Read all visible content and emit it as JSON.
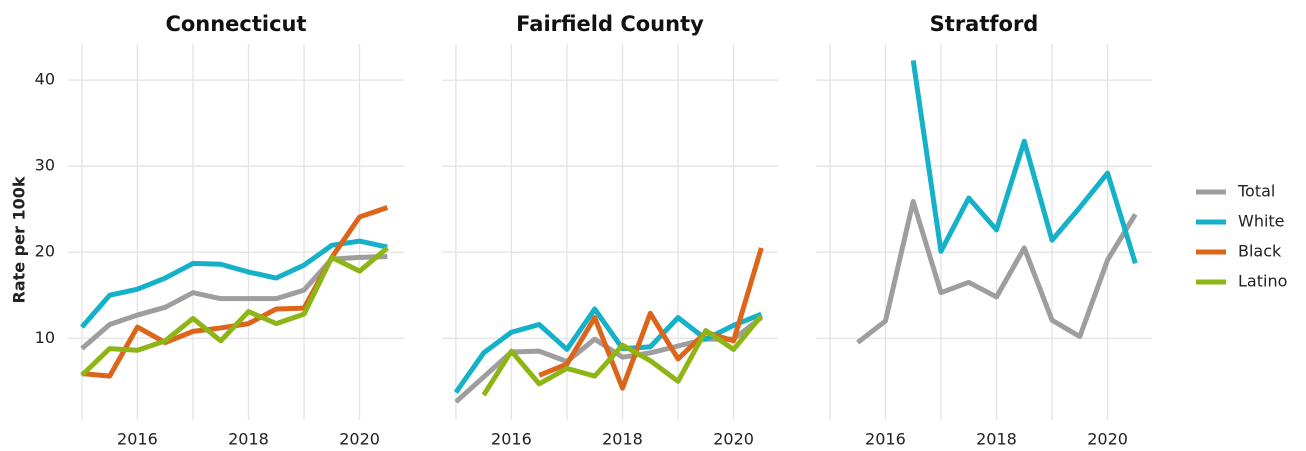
{
  "chart_data": [
    {
      "type": "line",
      "title": "Connecticut",
      "ylabel": "Rate per 100k",
      "x": [
        2015,
        2015.5,
        2016,
        2016.5,
        2017,
        2017.5,
        2018,
        2018.5,
        2019,
        2019.5,
        2020,
        2020.5
      ],
      "xlim": [
        2014.75,
        2020.8
      ],
      "xticks": [
        2016,
        2018,
        2020
      ],
      "x_minor_grid": [
        2015,
        2017,
        2019
      ],
      "ylim": [
        0.5,
        44.2
      ],
      "yticks": [
        10,
        20,
        30,
        40
      ],
      "grid": true,
      "series": [
        {
          "name": "Total",
          "color": "#9e9e9e",
          "values": [
            8.8,
            11.6,
            12.7,
            13.6,
            15.3,
            14.6,
            14.6,
            14.6,
            15.6,
            19.2,
            19.4,
            19.5
          ]
        },
        {
          "name": "White",
          "color": "#14b1c9",
          "values": [
            11.3,
            15.0,
            15.7,
            17.0,
            18.7,
            18.6,
            17.7,
            17.0,
            18.5,
            20.8,
            21.3,
            20.6
          ]
        },
        {
          "name": "Black",
          "color": "#dd651b",
          "values": [
            5.9,
            5.6,
            11.3,
            9.5,
            10.8,
            11.2,
            11.7,
            13.4,
            13.5,
            19.4,
            24.1,
            25.2
          ]
        },
        {
          "name": "Latino",
          "color": "#8db516",
          "values": [
            5.7,
            8.8,
            8.6,
            9.7,
            12.3,
            9.7,
            13.1,
            11.7,
            12.8,
            19.4,
            17.8,
            20.5
          ]
        }
      ]
    },
    {
      "type": "line",
      "title": "Fairfield County",
      "x": [
        2015,
        2015.5,
        2016,
        2016.5,
        2017,
        2017.5,
        2018,
        2018.5,
        2019,
        2019.5,
        2020,
        2020.5
      ],
      "xlim": [
        2014.75,
        2020.8
      ],
      "xticks": [
        2016,
        2018,
        2020
      ],
      "x_minor_grid": [
        2015,
        2017,
        2019
      ],
      "ylim": [
        0.5,
        44.2
      ],
      "yticks": [
        10,
        20,
        30,
        40
      ],
      "grid": true,
      "series": [
        {
          "name": "Total",
          "color": "#9e9e9e",
          "values": [
            2.6,
            5.5,
            8.4,
            8.5,
            7.3,
            9.9,
            7.8,
            8.3,
            9.1,
            9.9,
            9.9,
            12.4
          ]
        },
        {
          "name": "White",
          "color": "#14b1c9",
          "values": [
            3.7,
            8.3,
            10.7,
            11.6,
            8.7,
            13.4,
            8.8,
            9.0,
            12.4,
            9.9,
            11.5,
            12.8
          ]
        },
        {
          "name": "Black",
          "color": "#dd651b",
          "values": [
            null,
            null,
            null,
            5.7,
            7.0,
            12.4,
            4.2,
            12.9,
            7.6,
            10.7,
            9.7,
            20.5
          ]
        },
        {
          "name": "Latino",
          "color": "#8db516",
          "values": [
            null,
            3.4,
            8.5,
            4.7,
            6.5,
            5.6,
            9.2,
            7.4,
            5.0,
            10.9,
            8.7,
            12.6
          ]
        }
      ]
    },
    {
      "type": "line",
      "title": "Stratford",
      "x": [
        2015,
        2015.5,
        2016,
        2016.5,
        2017,
        2017.5,
        2018,
        2018.5,
        2019,
        2019.5,
        2020,
        2020.5
      ],
      "xlim": [
        2014.75,
        2020.8
      ],
      "xticks": [
        2016,
        2018,
        2020
      ],
      "x_minor_grid": [
        2015,
        2017,
        2019
      ],
      "ylim": [
        0.5,
        44.2
      ],
      "yticks": [
        10,
        20,
        30,
        40
      ],
      "grid": true,
      "series": [
        {
          "name": "Total",
          "color": "#9e9e9e",
          "values": [
            null,
            9.5,
            12.0,
            25.9,
            15.3,
            16.5,
            14.8,
            20.5,
            12.1,
            10.2,
            19.1,
            24.4
          ]
        },
        {
          "name": "White",
          "color": "#14b1c9",
          "values": [
            null,
            null,
            null,
            42.3,
            20.1,
            26.3,
            22.6,
            32.9,
            21.4,
            25.2,
            29.2,
            18.7
          ]
        }
      ]
    }
  ]
}
